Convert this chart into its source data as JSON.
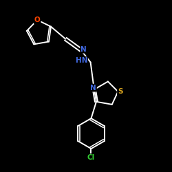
{
  "bg_color": "#000000",
  "bond_color": "#ffffff",
  "atom_colors": {
    "O": "#ff4500",
    "N": "#4169e1",
    "S": "#daa520",
    "Cl": "#32cd32",
    "C": "#ffffff",
    "H": "#ffffff"
  },
  "figsize": [
    2.5,
    2.5
  ],
  "dpi": 100
}
